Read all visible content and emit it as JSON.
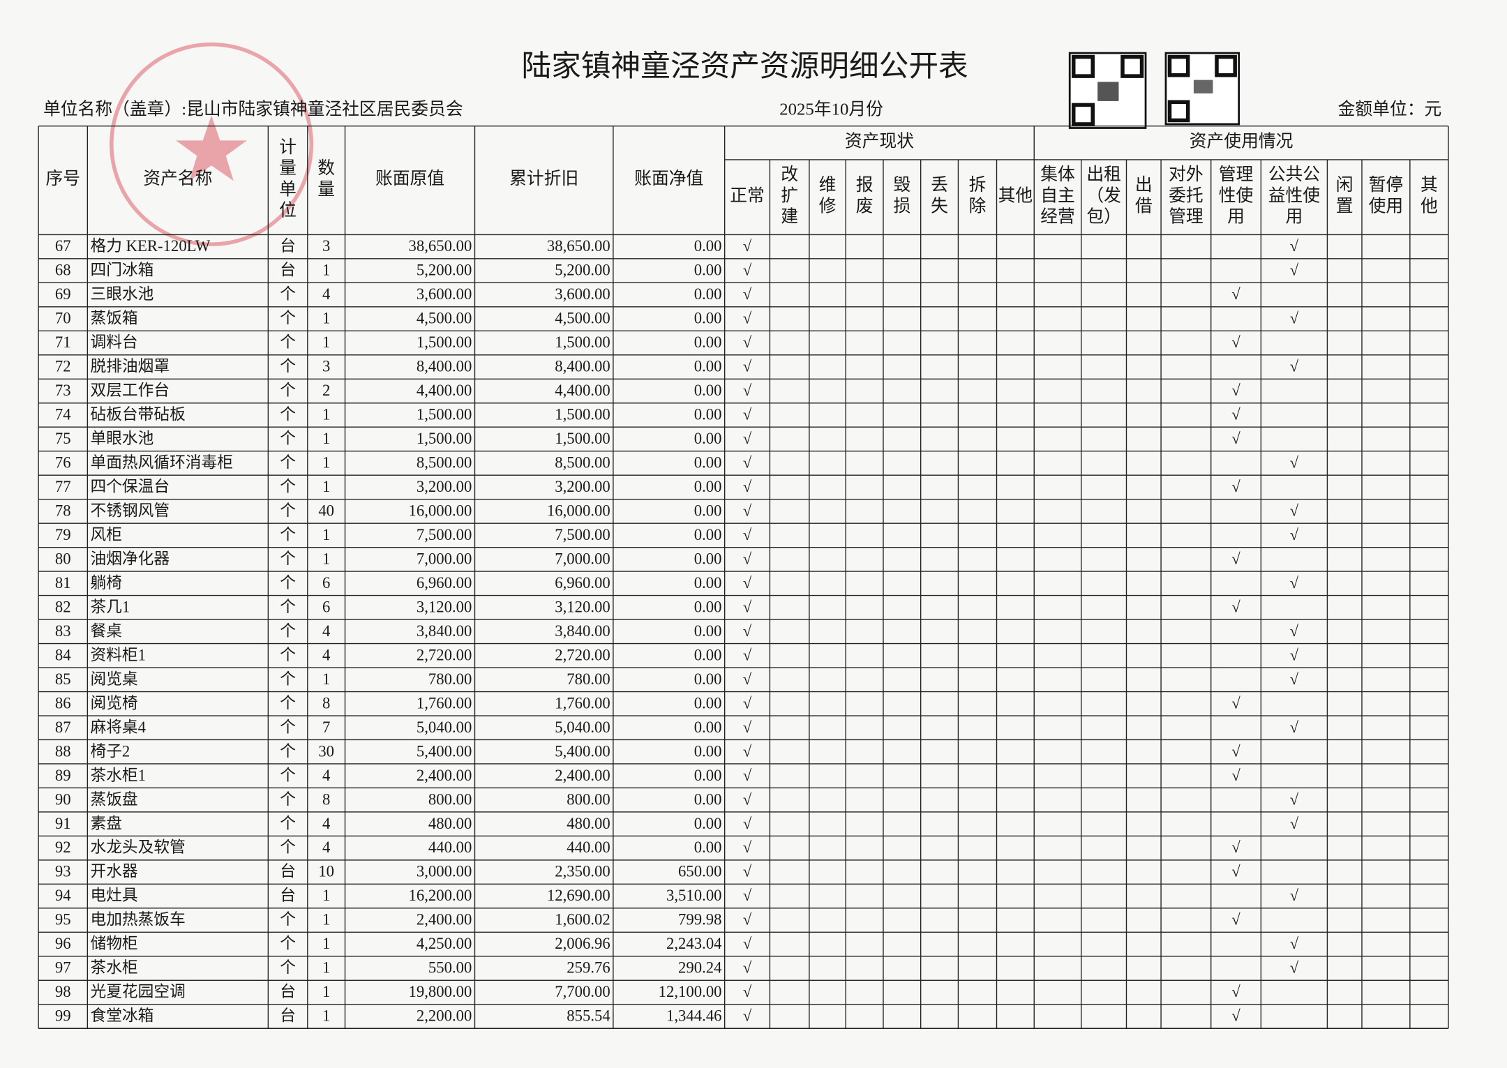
{
  "header": {
    "title": "陆家镇神童泾资产资源明细公开表",
    "unit_name": "单位名称（盖章）:昆山市陆家镇神童泾社区居民委员会",
    "period": "2025年10月份",
    "currency": "金额单位：元"
  },
  "table": {
    "groups": [
      "资产现状",
      "资产使用情况"
    ],
    "columns": [
      [
        "序号"
      ],
      [
        "资产名称"
      ],
      [
        "计",
        "量",
        "单",
        "位"
      ],
      [
        "数",
        "量"
      ],
      [
        "账面原值"
      ],
      [
        "累计折旧"
      ],
      [
        "账面净值"
      ],
      [
        "正常"
      ],
      [
        "改",
        "扩",
        "建"
      ],
      [
        "维",
        "修"
      ],
      [
        "报",
        "废"
      ],
      [
        "毁",
        "损"
      ],
      [
        "丢",
        "失"
      ],
      [
        "拆",
        "除"
      ],
      [
        "其他"
      ],
      [
        "集体",
        "自主",
        "经营"
      ],
      [
        "出租",
        "（发",
        "包）"
      ],
      [
        "出",
        "借"
      ],
      [
        "对外",
        "委托",
        "管理"
      ],
      [
        "管理",
        "性使",
        "用"
      ],
      [
        "公共公",
        "益性使",
        "用"
      ],
      [
        "闲",
        "置"
      ],
      [
        "暂停",
        "使用"
      ],
      [
        "其",
        "他"
      ]
    ],
    "rows": [
      [
        "67",
        "格力 KER-120LW",
        "台",
        "3",
        "38,650.00",
        "38,650.00",
        "0.00",
        "√",
        null,
        null,
        null,
        null,
        null,
        null,
        null,
        null,
        null,
        null,
        null,
        null,
        "√",
        null,
        null,
        null
      ],
      [
        "68",
        "四门冰箱",
        "台",
        "1",
        "5,200.00",
        "5,200.00",
        "0.00",
        "√",
        null,
        null,
        null,
        null,
        null,
        null,
        null,
        null,
        null,
        null,
        null,
        null,
        "√",
        null,
        null,
        null
      ],
      [
        "69",
        "三眼水池",
        "个",
        "4",
        "3,600.00",
        "3,600.00",
        "0.00",
        "√",
        null,
        null,
        null,
        null,
        null,
        null,
        null,
        null,
        null,
        null,
        null,
        "√",
        null,
        null,
        null,
        null
      ],
      [
        "70",
        "蒸饭箱",
        "个",
        "1",
        "4,500.00",
        "4,500.00",
        "0.00",
        "√",
        null,
        null,
        null,
        null,
        null,
        null,
        null,
        null,
        null,
        null,
        null,
        null,
        "√",
        null,
        null,
        null
      ],
      [
        "71",
        "调料台",
        "个",
        "1",
        "1,500.00",
        "1,500.00",
        "0.00",
        "√",
        null,
        null,
        null,
        null,
        null,
        null,
        null,
        null,
        null,
        null,
        null,
        "√",
        null,
        null,
        null,
        null
      ],
      [
        "72",
        "脱排油烟罩",
        "个",
        "3",
        "8,400.00",
        "8,400.00",
        "0.00",
        "√",
        null,
        null,
        null,
        null,
        null,
        null,
        null,
        null,
        null,
        null,
        null,
        null,
        "√",
        null,
        null,
        null
      ],
      [
        "73",
        "双层工作台",
        "个",
        "2",
        "4,400.00",
        "4,400.00",
        "0.00",
        "√",
        null,
        null,
        null,
        null,
        null,
        null,
        null,
        null,
        null,
        null,
        null,
        "√",
        null,
        null,
        null,
        null
      ],
      [
        "74",
        "砧板台带砧板",
        "个",
        "1",
        "1,500.00",
        "1,500.00",
        "0.00",
        "√",
        null,
        null,
        null,
        null,
        null,
        null,
        null,
        null,
        null,
        null,
        null,
        "√",
        null,
        null,
        null,
        null
      ],
      [
        "75",
        "单眼水池",
        "个",
        "1",
        "1,500.00",
        "1,500.00",
        "0.00",
        "√",
        null,
        null,
        null,
        null,
        null,
        null,
        null,
        null,
        null,
        null,
        null,
        "√",
        null,
        null,
        null,
        null
      ],
      [
        "76",
        "单面热风循环消毒柜",
        "个",
        "1",
        "8,500.00",
        "8,500.00",
        "0.00",
        "√",
        null,
        null,
        null,
        null,
        null,
        null,
        null,
        null,
        null,
        null,
        null,
        null,
        "√",
        null,
        null,
        null
      ],
      [
        "77",
        "四个保温台",
        "个",
        "1",
        "3,200.00",
        "3,200.00",
        "0.00",
        "√",
        null,
        null,
        null,
        null,
        null,
        null,
        null,
        null,
        null,
        null,
        null,
        "√",
        null,
        null,
        null,
        null
      ],
      [
        "78",
        "不锈钢风管",
        "个",
        "40",
        "16,000.00",
        "16,000.00",
        "0.00",
        "√",
        null,
        null,
        null,
        null,
        null,
        null,
        null,
        null,
        null,
        null,
        null,
        null,
        "√",
        null,
        null,
        null
      ],
      [
        "79",
        "风柜",
        "个",
        "1",
        "7,500.00",
        "7,500.00",
        "0.00",
        "√",
        null,
        null,
        null,
        null,
        null,
        null,
        null,
        null,
        null,
        null,
        null,
        null,
        "√",
        null,
        null,
        null
      ],
      [
        "80",
        "油烟净化器",
        "个",
        "1",
        "7,000.00",
        "7,000.00",
        "0.00",
        "√",
        null,
        null,
        null,
        null,
        null,
        null,
        null,
        null,
        null,
        null,
        null,
        "√",
        null,
        null,
        null,
        null
      ],
      [
        "81",
        "躺椅",
        "个",
        "6",
        "6,960.00",
        "6,960.00",
        "0.00",
        "√",
        null,
        null,
        null,
        null,
        null,
        null,
        null,
        null,
        null,
        null,
        null,
        null,
        "√",
        null,
        null,
        null
      ],
      [
        "82",
        "茶几1",
        "个",
        "6",
        "3,120.00",
        "3,120.00",
        "0.00",
        "√",
        null,
        null,
        null,
        null,
        null,
        null,
        null,
        null,
        null,
        null,
        null,
        "√",
        null,
        null,
        null,
        null
      ],
      [
        "83",
        "餐桌",
        "个",
        "4",
        "3,840.00",
        "3,840.00",
        "0.00",
        "√",
        null,
        null,
        null,
        null,
        null,
        null,
        null,
        null,
        null,
        null,
        null,
        null,
        "√",
        null,
        null,
        null
      ],
      [
        "84",
        "资料柜1",
        "个",
        "4",
        "2,720.00",
        "2,720.00",
        "0.00",
        "√",
        null,
        null,
        null,
        null,
        null,
        null,
        null,
        null,
        null,
        null,
        null,
        null,
        "√",
        null,
        null,
        null
      ],
      [
        "85",
        "阅览桌",
        "个",
        "1",
        "780.00",
        "780.00",
        "0.00",
        "√",
        null,
        null,
        null,
        null,
        null,
        null,
        null,
        null,
        null,
        null,
        null,
        null,
        "√",
        null,
        null,
        null
      ],
      [
        "86",
        "阅览椅",
        "个",
        "8",
        "1,760.00",
        "1,760.00",
        "0.00",
        "√",
        null,
        null,
        null,
        null,
        null,
        null,
        null,
        null,
        null,
        null,
        null,
        "√",
        null,
        null,
        null,
        null
      ],
      [
        "87",
        "麻将桌4",
        "个",
        "7",
        "5,040.00",
        "5,040.00",
        "0.00",
        "√",
        null,
        null,
        null,
        null,
        null,
        null,
        null,
        null,
        null,
        null,
        null,
        null,
        "√",
        null,
        null,
        null
      ],
      [
        "88",
        "椅子2",
        "个",
        "30",
        "5,400.00",
        "5,400.00",
        "0.00",
        "√",
        null,
        null,
        null,
        null,
        null,
        null,
        null,
        null,
        null,
        null,
        null,
        "√",
        null,
        null,
        null,
        null
      ],
      [
        "89",
        "茶水柜1",
        "个",
        "4",
        "2,400.00",
        "2,400.00",
        "0.00",
        "√",
        null,
        null,
        null,
        null,
        null,
        null,
        null,
        null,
        null,
        null,
        null,
        "√",
        null,
        null,
        null,
        null
      ],
      [
        "90",
        "蒸饭盘",
        "个",
        "8",
        "800.00",
        "800.00",
        "0.00",
        "√",
        null,
        null,
        null,
        null,
        null,
        null,
        null,
        null,
        null,
        null,
        null,
        null,
        "√",
        null,
        null,
        null
      ],
      [
        "91",
        "素盘",
        "个",
        "4",
        "480.00",
        "480.00",
        "0.00",
        "√",
        null,
        null,
        null,
        null,
        null,
        null,
        null,
        null,
        null,
        null,
        null,
        null,
        "√",
        null,
        null,
        null
      ],
      [
        "92",
        "水龙头及软管",
        "个",
        "4",
        "440.00",
        "440.00",
        "0.00",
        "√",
        null,
        null,
        null,
        null,
        null,
        null,
        null,
        null,
        null,
        null,
        null,
        "√",
        null,
        null,
        null,
        null
      ],
      [
        "93",
        "开水器",
        "台",
        "10",
        "3,000.00",
        "2,350.00",
        "650.00",
        "√",
        null,
        null,
        null,
        null,
        null,
        null,
        null,
        null,
        null,
        null,
        null,
        "√",
        null,
        null,
        null,
        null
      ],
      [
        "94",
        "电灶具",
        "台",
        "1",
        "16,200.00",
        "12,690.00",
        "3,510.00",
        "√",
        null,
        null,
        null,
        null,
        null,
        null,
        null,
        null,
        null,
        null,
        null,
        null,
        "√",
        null,
        null,
        null
      ],
      [
        "95",
        "电加热蒸饭车",
        "个",
        "1",
        "2,400.00",
        "1,600.02",
        "799.98",
        "√",
        null,
        null,
        null,
        null,
        null,
        null,
        null,
        null,
        null,
        null,
        null,
        "√",
        null,
        null,
        null,
        null
      ],
      [
        "96",
        "储物柜",
        "个",
        "1",
        "4,250.00",
        "2,006.96",
        "2,243.04",
        "√",
        null,
        null,
        null,
        null,
        null,
        null,
        null,
        null,
        null,
        null,
        null,
        null,
        "√",
        null,
        null,
        null
      ],
      [
        "97",
        "茶水柜",
        "个",
        "1",
        "550.00",
        "259.76",
        "290.24",
        "√",
        null,
        null,
        null,
        null,
        null,
        null,
        null,
        null,
        null,
        null,
        null,
        null,
        "√",
        null,
        null,
        null
      ],
      [
        "98",
        "光夏花园空调",
        "台",
        "1",
        "19,800.00",
        "7,700.00",
        "12,100.00",
        "√",
        null,
        null,
        null,
        null,
        null,
        null,
        null,
        null,
        null,
        null,
        null,
        "√",
        null,
        null,
        null,
        null
      ],
      [
        "99",
        "食堂冰箱",
        "台",
        "1",
        "2,200.00",
        "855.54",
        "1,344.46",
        "√",
        null,
        null,
        null,
        null,
        null,
        null,
        null,
        null,
        null,
        null,
        null,
        "√",
        null,
        null,
        null,
        null
      ]
    ]
  }
}
